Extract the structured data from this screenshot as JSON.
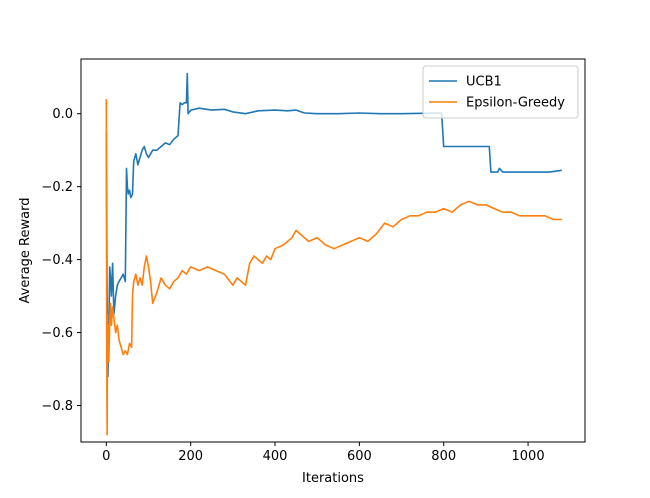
{
  "chart_data": {
    "type": "line",
    "title": "",
    "xlabel": "Iterations",
    "ylabel": "Average Reward",
    "xlim": [
      -60,
      1135
    ],
    "ylim": [
      -0.9,
      0.15
    ],
    "xticks": [
      0,
      200,
      400,
      600,
      800,
      1000
    ],
    "xtick_labels": [
      "0",
      "200",
      "400",
      "600",
      "800",
      "1000"
    ],
    "yticks": [
      0.0,
      -0.2,
      -0.4,
      -0.6,
      -0.8
    ],
    "ytick_labels": [
      "0.0",
      "−0.2",
      "−0.4",
      "−0.6",
      "−0.8"
    ],
    "grid": false,
    "legend_position": "top-right",
    "series": [
      {
        "name": "UCB1",
        "color": "#1f77b4",
        "x": [
          0,
          2,
          4,
          6,
          8,
          10,
          12,
          15,
          18,
          22,
          26,
          30,
          35,
          40,
          45,
          48,
          50,
          52,
          55,
          58,
          62,
          65,
          70,
          75,
          80,
          85,
          90,
          95,
          100,
          110,
          120,
          130,
          140,
          150,
          160,
          170,
          175,
          180,
          185,
          190,
          192,
          194,
          200,
          220,
          250,
          280,
          300,
          330,
          360,
          400,
          430,
          450,
          470,
          500,
          550,
          600,
          650,
          700,
          750,
          795,
          800,
          805,
          850,
          900,
          908,
          912,
          920,
          928,
          932,
          940,
          960,
          1000,
          1050,
          1080
        ],
        "y": [
          -0.05,
          -0.5,
          -0.72,
          -0.6,
          -0.42,
          -0.45,
          -0.5,
          -0.41,
          -0.55,
          -0.5,
          -0.47,
          -0.46,
          -0.45,
          -0.44,
          -0.46,
          -0.15,
          -0.2,
          -0.22,
          -0.21,
          -0.23,
          -0.22,
          -0.13,
          -0.11,
          -0.14,
          -0.12,
          -0.1,
          -0.09,
          -0.11,
          -0.12,
          -0.1,
          -0.1,
          -0.09,
          -0.08,
          -0.085,
          -0.07,
          -0.06,
          0.03,
          0.025,
          0.03,
          0.03,
          0.11,
          0.0,
          0.01,
          0.015,
          0.01,
          0.012,
          0.005,
          0.0,
          0.008,
          0.01,
          0.008,
          0.01,
          0.002,
          0.0,
          0.0,
          0.002,
          0.0,
          0.0,
          0.001,
          0.002,
          -0.09,
          -0.09,
          -0.09,
          -0.09,
          -0.09,
          -0.16,
          -0.16,
          -0.16,
          -0.15,
          -0.16,
          -0.16,
          -0.16,
          -0.16,
          -0.155
        ]
      },
      {
        "name": "Epsilon-Greedy",
        "color": "#ff7f0e",
        "x": [
          0,
          1,
          2,
          3,
          4,
          5,
          6,
          8,
          10,
          12,
          15,
          18,
          22,
          26,
          30,
          35,
          40,
          45,
          50,
          55,
          60,
          62,
          65,
          70,
          75,
          80,
          85,
          90,
          95,
          100,
          105,
          110,
          120,
          130,
          140,
          150,
          160,
          170,
          180,
          190,
          200,
          220,
          240,
          260,
          280,
          300,
          310,
          320,
          330,
          340,
          350,
          360,
          370,
          380,
          390,
          400,
          420,
          440,
          450,
          460,
          480,
          500,
          520,
          540,
          560,
          580,
          600,
          620,
          640,
          660,
          680,
          700,
          720,
          740,
          760,
          780,
          800,
          820,
          840,
          860,
          880,
          900,
          920,
          940,
          960,
          980,
          1000,
          1020,
          1040,
          1060,
          1080
        ],
        "y": [
          0.04,
          -0.62,
          -0.88,
          -0.55,
          -0.65,
          -0.58,
          -0.68,
          -0.57,
          -0.52,
          -0.58,
          -0.53,
          -0.56,
          -0.6,
          -0.58,
          -0.62,
          -0.64,
          -0.66,
          -0.65,
          -0.66,
          -0.63,
          -0.64,
          -0.5,
          -0.46,
          -0.44,
          -0.47,
          -0.45,
          -0.47,
          -0.42,
          -0.39,
          -0.42,
          -0.46,
          -0.52,
          -0.49,
          -0.45,
          -0.47,
          -0.48,
          -0.46,
          -0.45,
          -0.43,
          -0.44,
          -0.42,
          -0.43,
          -0.42,
          -0.43,
          -0.44,
          -0.47,
          -0.45,
          -0.46,
          -0.47,
          -0.41,
          -0.39,
          -0.4,
          -0.41,
          -0.39,
          -0.4,
          -0.37,
          -0.36,
          -0.34,
          -0.32,
          -0.33,
          -0.35,
          -0.34,
          -0.36,
          -0.37,
          -0.36,
          -0.35,
          -0.34,
          -0.35,
          -0.33,
          -0.3,
          -0.31,
          -0.29,
          -0.28,
          -0.28,
          -0.27,
          -0.27,
          -0.26,
          -0.27,
          -0.25,
          -0.24,
          -0.25,
          -0.25,
          -0.26,
          -0.27,
          -0.27,
          -0.28,
          -0.28,
          -0.28,
          -0.28,
          -0.29,
          -0.29
        ]
      }
    ]
  }
}
